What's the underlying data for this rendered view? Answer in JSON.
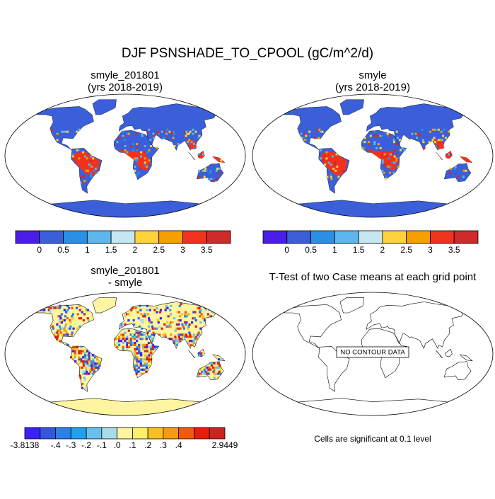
{
  "title": "DJF PSNSHADE_TO_CPOOL (gC/m^2/d)",
  "panels": [
    {
      "title": "smyle_201801",
      "subtitle": "(yrs 2018-2019)",
      "colorbar": {
        "colors": [
          "#4a1de8",
          "#3a5fd9",
          "#2b8fe6",
          "#5cb8ec",
          "#c6e6f2",
          "#fcd33a",
          "#f5a000",
          "#f0321e",
          "#d02a2a"
        ],
        "labels": [
          "0",
          "0.5",
          "1",
          "1.5",
          "2",
          "2.5",
          "3",
          "3.5"
        ]
      }
    },
    {
      "title": "smyle",
      "subtitle": "(yrs 2018-2019)",
      "colorbar": {
        "colors": [
          "#4a1de8",
          "#3a5fd9",
          "#2b8fe6",
          "#5cb8ec",
          "#c6e6f2",
          "#fcd33a",
          "#f5a000",
          "#f0321e",
          "#d02a2a"
        ],
        "labels": [
          "0",
          "0.5",
          "1",
          "1.5",
          "2",
          "2.5",
          "3",
          "3.5"
        ]
      }
    },
    {
      "title": "smyle_201801",
      "subtitle": "- smyle",
      "colorbar": {
        "colors": [
          "#3a1fff",
          "#3355e0",
          "#2a7fe8",
          "#1fa0f0",
          "#66c2ec",
          "#a8dbe8",
          "#fff5a0",
          "#ffee66",
          "#fcc01e",
          "#f79a10",
          "#f25a0a",
          "#e81c0c",
          "#cc2222"
        ],
        "labels": [
          "-3.8138",
          "-.4",
          "-.3",
          "-.2",
          "-.1",
          ".0",
          ".1",
          ".2",
          ".3",
          ".4",
          "2.9449"
        ]
      }
    },
    {
      "title": "T-Test of two Case means at each grid point",
      "annotation": "NO CONTOUR DATA",
      "footnote": "Cells are significant at 0.1 level"
    }
  ]
}
